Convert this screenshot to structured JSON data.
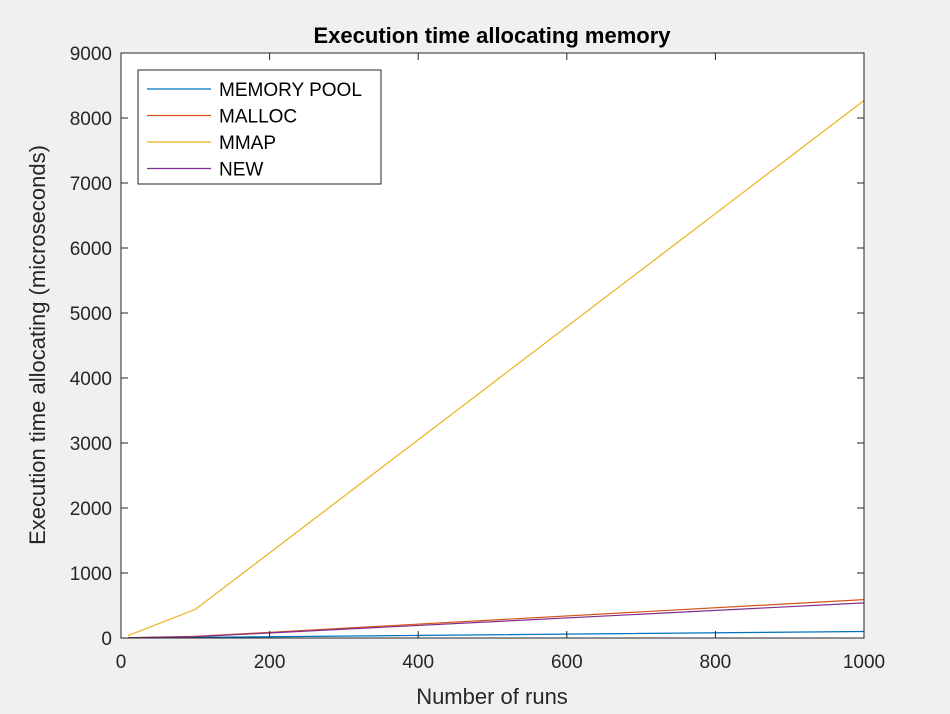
{
  "chart_data": {
    "type": "line",
    "title": "Execution time allocating memory",
    "xlabel": "Number of runs",
    "ylabel": "Execution time allocating (microseconds)",
    "xlim": [
      0,
      1000
    ],
    "ylim": [
      0,
      9000
    ],
    "xticks": [
      0,
      200,
      400,
      600,
      800,
      1000
    ],
    "yticks": [
      0,
      1000,
      2000,
      3000,
      4000,
      5000,
      6000,
      7000,
      8000,
      9000
    ],
    "grid": false,
    "legend_position": "top-left",
    "x": [
      10,
      100,
      1000
    ],
    "series": [
      {
        "name": "MEMORY POOL",
        "color": "#0072bd",
        "values": [
          2,
          10,
          100
        ]
      },
      {
        "name": "MALLOC",
        "color": "#d95319",
        "values": [
          5,
          25,
          590
        ]
      },
      {
        "name": "MMAP",
        "color": "#edb120",
        "values": [
          40,
          440,
          8270
        ]
      },
      {
        "name": "NEW",
        "color": "#7e2f8e",
        "values": [
          5,
          20,
          540
        ]
      }
    ]
  }
}
